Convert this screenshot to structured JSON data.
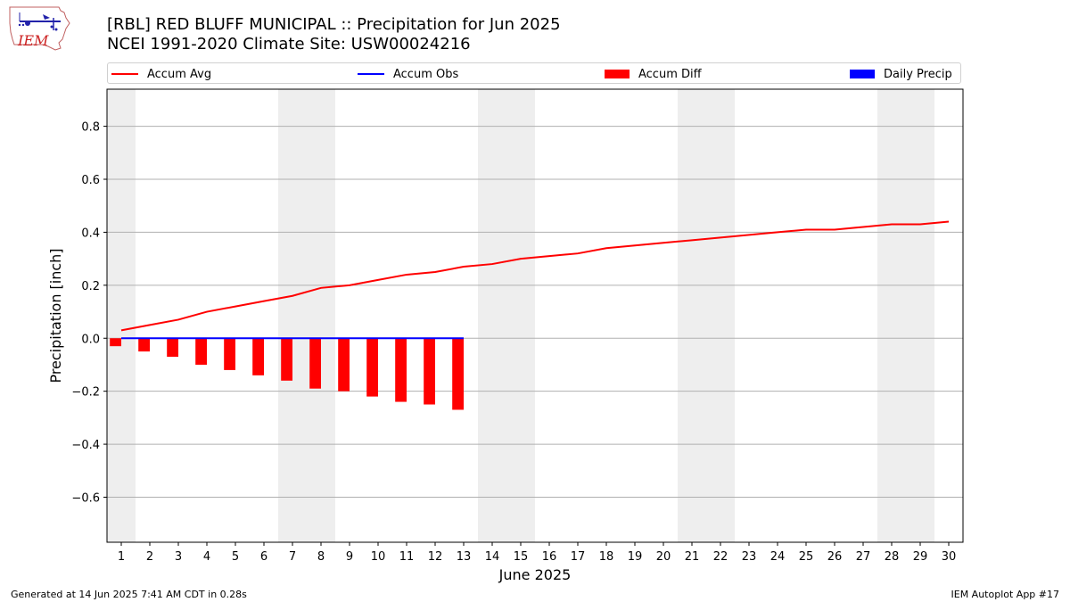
{
  "header": {
    "title": "[RBL] RED BLUFF MUNICIPAL :: Precipitation for Jun 2025",
    "subtitle": "NCEI 1991-2020 Climate Site: USW00024216"
  },
  "logo": {
    "text": "IEM",
    "icon": "iem-logo-icon"
  },
  "footer": {
    "left": "Generated at 14 Jun 2025 7:41 AM CDT in 0.28s",
    "right": "IEM Autoplot App #17"
  },
  "colors": {
    "accum_avg": "#ff0000",
    "accum_obs": "#0000ff",
    "accum_diff": "#ff0000",
    "daily_precip": "#0000ff",
    "weekend_band": "#eeeeee",
    "grid": "#b0b0b0"
  },
  "chart_data": {
    "type": "bar",
    "title": "[RBL] RED BLUFF MUNICIPAL :: Precipitation for Jun 2025",
    "subtitle": "NCEI 1991-2020 Climate Site: USW00024216",
    "xlabel": "June 2025",
    "ylabel": "Precipitation [inch]",
    "x": [
      1,
      2,
      3,
      4,
      5,
      6,
      7,
      8,
      9,
      10,
      11,
      12,
      13,
      14,
      15,
      16,
      17,
      18,
      19,
      20,
      21,
      22,
      23,
      24,
      25,
      26,
      27,
      28,
      29,
      30
    ],
    "xlim": [
      0.5,
      30.5
    ],
    "ylim": [
      -0.77,
      0.94
    ],
    "yticks": [
      -0.6,
      -0.4,
      -0.2,
      0.0,
      0.2,
      0.4,
      0.6,
      0.8
    ],
    "ytick_labels": [
      "−0.6",
      "−0.4",
      "−0.2",
      "0.0",
      "0.2",
      "0.4",
      "0.6",
      "0.8"
    ],
    "grid": "horizontal",
    "legend_position": "top",
    "weekend_bands": [
      [
        0.5,
        1.5
      ],
      [
        6.5,
        8.5
      ],
      [
        13.5,
        15.5
      ],
      [
        20.5,
        22.5
      ],
      [
        27.5,
        29.5
      ]
    ],
    "series": [
      {
        "name": "Accum Avg",
        "type": "line",
        "x": [
          1,
          2,
          3,
          4,
          5,
          6,
          7,
          8,
          9,
          10,
          11,
          12,
          13,
          14,
          15,
          16,
          17,
          18,
          19,
          20,
          21,
          22,
          23,
          24,
          25,
          26,
          27,
          28,
          29,
          30
        ],
        "values": [
          0.03,
          0.05,
          0.07,
          0.1,
          0.12,
          0.14,
          0.16,
          0.19,
          0.2,
          0.22,
          0.24,
          0.25,
          0.27,
          0.28,
          0.3,
          0.31,
          0.32,
          0.34,
          0.35,
          0.36,
          0.37,
          0.38,
          0.39,
          0.4,
          0.41,
          0.41,
          0.42,
          0.43,
          0.43,
          0.44
        ]
      },
      {
        "name": "Accum Obs",
        "type": "line",
        "x": [
          1,
          2,
          3,
          4,
          5,
          6,
          7,
          8,
          9,
          10,
          11,
          12,
          13
        ],
        "values": [
          0,
          0,
          0,
          0,
          0,
          0,
          0,
          0,
          0,
          0,
          0,
          0,
          0
        ]
      },
      {
        "name": "Accum Diff",
        "type": "bar",
        "x": [
          1,
          2,
          3,
          4,
          5,
          6,
          7,
          8,
          9,
          10,
          11,
          12,
          13
        ],
        "values": [
          -0.03,
          -0.05,
          -0.07,
          -0.1,
          -0.12,
          -0.14,
          -0.16,
          -0.19,
          -0.2,
          -0.22,
          -0.24,
          -0.25,
          -0.27
        ]
      },
      {
        "name": "Daily Precip",
        "type": "bar",
        "x": [
          1,
          2,
          3,
          4,
          5,
          6,
          7,
          8,
          9,
          10,
          11,
          12,
          13
        ],
        "values": [
          0,
          0,
          0,
          0,
          0,
          0,
          0,
          0,
          0,
          0,
          0,
          0,
          0
        ]
      }
    ]
  }
}
